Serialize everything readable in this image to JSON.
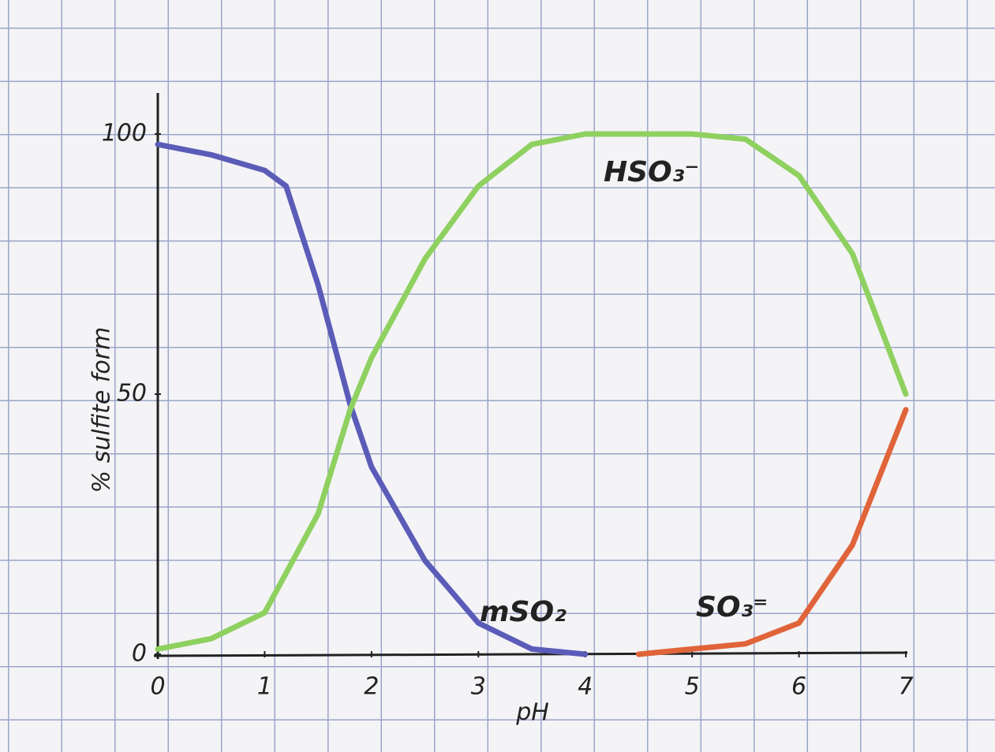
{
  "chart_data": {
    "type": "line",
    "xlabel": "pH",
    "ylabel": "% sulfite form",
    "xlim": [
      0,
      7
    ],
    "xticks": [
      0,
      1,
      2,
      3,
      4,
      5,
      6,
      7
    ],
    "ylim": [
      0,
      100
    ],
    "yticks": [
      0,
      50,
      100
    ],
    "series": [
      {
        "name": "mSO₂",
        "color": "#5b5cb8",
        "x": [
          0,
          0.5,
          1,
          1.2,
          1.5,
          1.8,
          2,
          2.5,
          3,
          3.5,
          4
        ],
        "values": [
          98,
          96,
          93,
          90,
          71,
          48,
          36,
          18,
          6,
          1,
          0
        ]
      },
      {
        "name": "HSO₃⁻",
        "color": "#8fd160",
        "x": [
          0,
          0.5,
          1,
          1.5,
          1.8,
          2,
          2.5,
          3,
          3.5,
          4,
          5,
          5.5,
          6,
          6.5,
          7
        ],
        "values": [
          1,
          3,
          8,
          27,
          47,
          57,
          76,
          90,
          98,
          100,
          100,
          99,
          92,
          77,
          50
        ]
      },
      {
        "name": "SO₃⁼",
        "color": "#e0643a",
        "x": [
          4.5,
          5,
          5.5,
          6,
          6.5,
          7
        ],
        "values": [
          0,
          1,
          2,
          6,
          21,
          47
        ]
      }
    ]
  }
}
